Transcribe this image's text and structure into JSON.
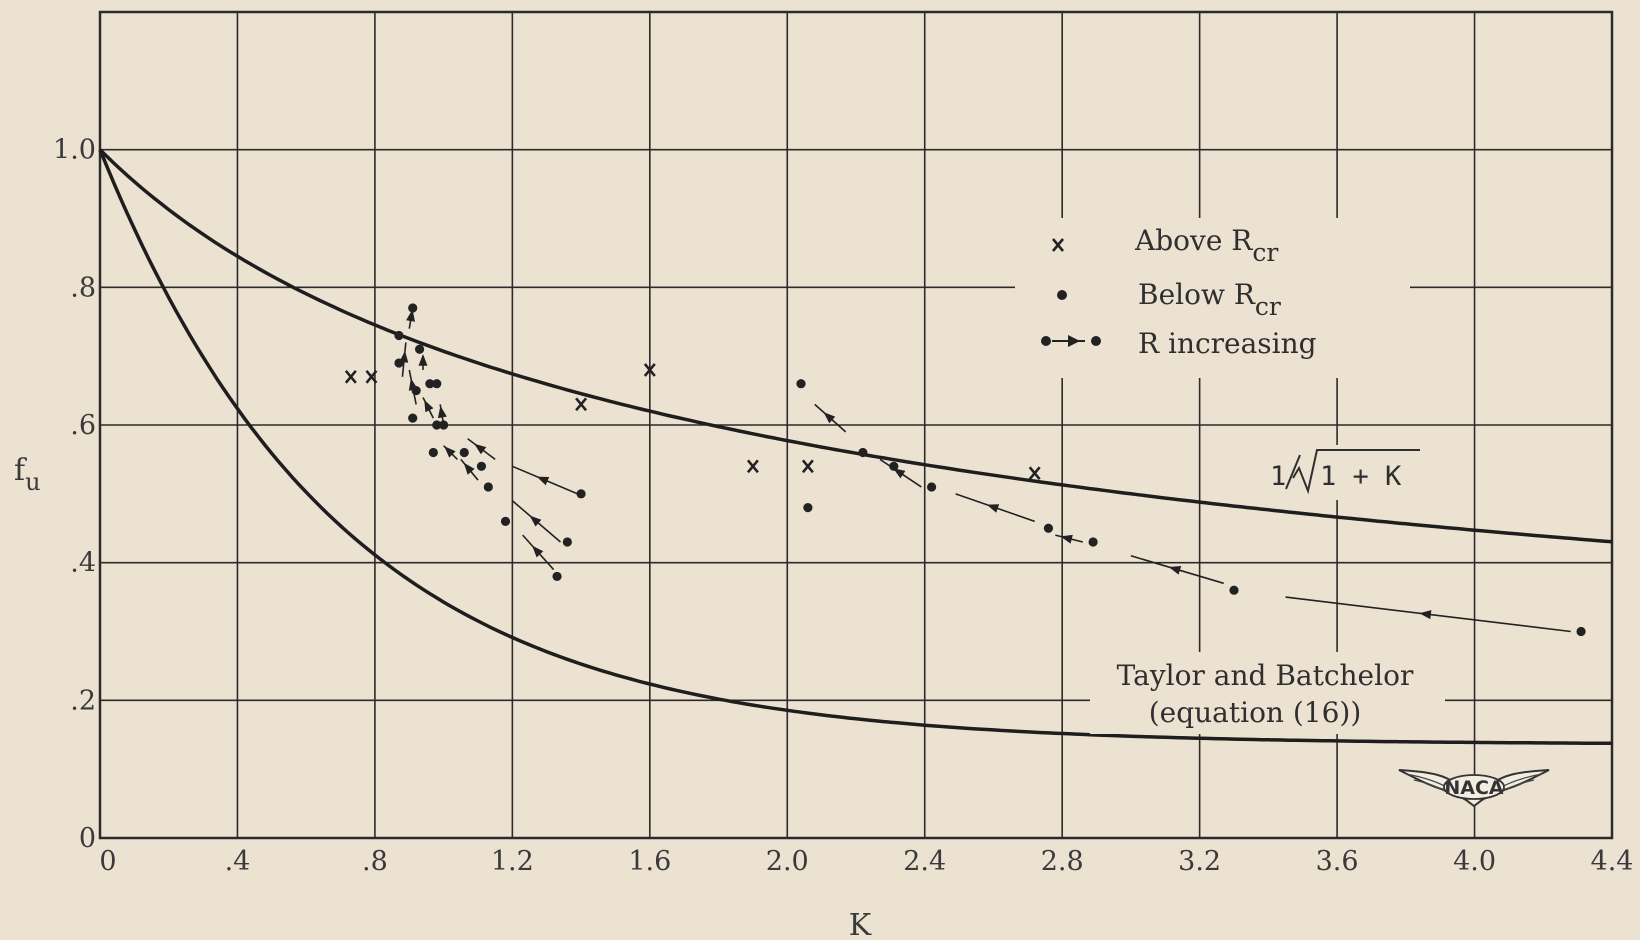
{
  "chart_data": {
    "type": "scatter",
    "xlabel": "K",
    "ylabel": "f",
    "ylabel_sub": "u",
    "xlim": [
      0,
      4.4
    ],
    "ylim": [
      0,
      1.2
    ],
    "grid": true,
    "x_ticks": [
      {
        "v": 0,
        "label": "0"
      },
      {
        "v": 0.4,
        "label": ".4"
      },
      {
        "v": 0.8,
        "label": ".8"
      },
      {
        "v": 1.2,
        "label": "1.2"
      },
      {
        "v": 1.6,
        "label": "1.6"
      },
      {
        "v": 2.0,
        "label": "2.0"
      },
      {
        "v": 2.4,
        "label": "2.4"
      },
      {
        "v": 2.8,
        "label": "2.8"
      },
      {
        "v": 3.2,
        "label": "3.2"
      },
      {
        "v": 3.6,
        "label": "3.6"
      },
      {
        "v": 4.0,
        "label": "4.0"
      },
      {
        "v": 4.4,
        "label": "4.4"
      }
    ],
    "y_ticks": [
      {
        "v": 0,
        "label": "0"
      },
      {
        "v": 0.2,
        "label": ".2"
      },
      {
        "v": 0.4,
        "label": ".4"
      },
      {
        "v": 0.6,
        "label": ".6"
      },
      {
        "v": 0.8,
        "label": ".8"
      },
      {
        "v": 1.0,
        "label": "1.0"
      }
    ],
    "legend": {
      "placement": "upper-right",
      "entries": [
        {
          "marker": "x",
          "text": "Above R",
          "sub": "cr"
        },
        {
          "marker": "dot",
          "text": "Below R",
          "sub": "cr"
        },
        {
          "marker": "dot-arrow-dot",
          "text": "R increasing"
        }
      ]
    },
    "curves": [
      {
        "name": "1/√(1 + K)",
        "label_prefix": "1",
        "label_radicand": "1 + K",
        "formula": "1/sqrt(1+K)"
      },
      {
        "name": "Taylor and Batchelor (equation (16))",
        "label_line1": "Taylor and Batchelor",
        "label_line2": "(equation (16))"
      }
    ],
    "series": [
      {
        "name": "Above Rcr",
        "marker": "x",
        "points": [
          [
            0.73,
            0.67
          ],
          [
            0.79,
            0.67
          ],
          [
            1.4,
            0.63
          ],
          [
            1.6,
            0.68
          ],
          [
            1.9,
            0.54
          ],
          [
            2.06,
            0.54
          ],
          [
            2.72,
            0.53
          ]
        ]
      },
      {
        "name": "Below Rcr",
        "marker": "dot",
        "points": [
          [
            0.87,
            0.73
          ],
          [
            0.91,
            0.77
          ],
          [
            0.87,
            0.69
          ],
          [
            0.93,
            0.71
          ],
          [
            0.92,
            0.65
          ],
          [
            0.96,
            0.66
          ],
          [
            0.98,
            0.66
          ],
          [
            0.91,
            0.61
          ],
          [
            0.98,
            0.6
          ],
          [
            1.0,
            0.6
          ],
          [
            0.97,
            0.56
          ],
          [
            1.06,
            0.56
          ],
          [
            1.11,
            0.54
          ],
          [
            1.13,
            0.51
          ],
          [
            1.18,
            0.46
          ],
          [
            1.33,
            0.38
          ],
          [
            1.36,
            0.43
          ],
          [
            1.4,
            0.5
          ],
          [
            2.04,
            0.66
          ],
          [
            2.06,
            0.48
          ],
          [
            2.22,
            0.56
          ],
          [
            2.31,
            0.54
          ],
          [
            2.42,
            0.51
          ],
          [
            2.76,
            0.45
          ],
          [
            2.89,
            0.43
          ],
          [
            3.3,
            0.36
          ],
          [
            4.31,
            0.3
          ]
        ]
      }
    ],
    "r_increasing_arrows": [
      [
        [
          0.88,
          0.67
        ],
        [
          0.89,
          0.72
        ]
      ],
      [
        [
          0.9,
          0.74
        ],
        [
          0.91,
          0.77
        ]
      ],
      [
        [
          0.92,
          0.63
        ],
        [
          0.9,
          0.68
        ]
      ],
      [
        [
          0.94,
          0.68
        ],
        [
          0.94,
          0.7
        ]
      ],
      [
        [
          0.97,
          0.61
        ],
        [
          0.94,
          0.64
        ]
      ],
      [
        [
          1.0,
          0.6
        ],
        [
          0.99,
          0.63
        ]
      ],
      [
        [
          1.04,
          0.55
        ],
        [
          1.0,
          0.57
        ]
      ],
      [
        [
          1.1,
          0.52
        ],
        [
          1.05,
          0.55
        ]
      ],
      [
        [
          1.15,
          0.55
        ],
        [
          1.07,
          0.58
        ]
      ],
      [
        [
          1.39,
          0.5
        ],
        [
          1.2,
          0.54
        ]
      ],
      [
        [
          1.34,
          0.43
        ],
        [
          1.2,
          0.49
        ]
      ],
      [
        [
          1.32,
          0.39
        ],
        [
          1.23,
          0.44
        ]
      ],
      [
        [
          2.17,
          0.59
        ],
        [
          2.08,
          0.63
        ]
      ],
      [
        [
          2.39,
          0.51
        ],
        [
          2.27,
          0.55
        ]
      ],
      [
        [
          2.72,
          0.46
        ],
        [
          2.49,
          0.5
        ]
      ],
      [
        [
          2.86,
          0.43
        ],
        [
          2.78,
          0.44
        ]
      ],
      [
        [
          3.27,
          0.37
        ],
        [
          3.0,
          0.41
        ]
      ],
      [
        [
          4.28,
          0.3
        ],
        [
          3.45,
          0.35
        ]
      ]
    ],
    "annotations": [
      {
        "text": "Taylor and Batchelor"
      },
      {
        "text": "(equation (16))"
      }
    ],
    "logo_text": "NACA"
  }
}
